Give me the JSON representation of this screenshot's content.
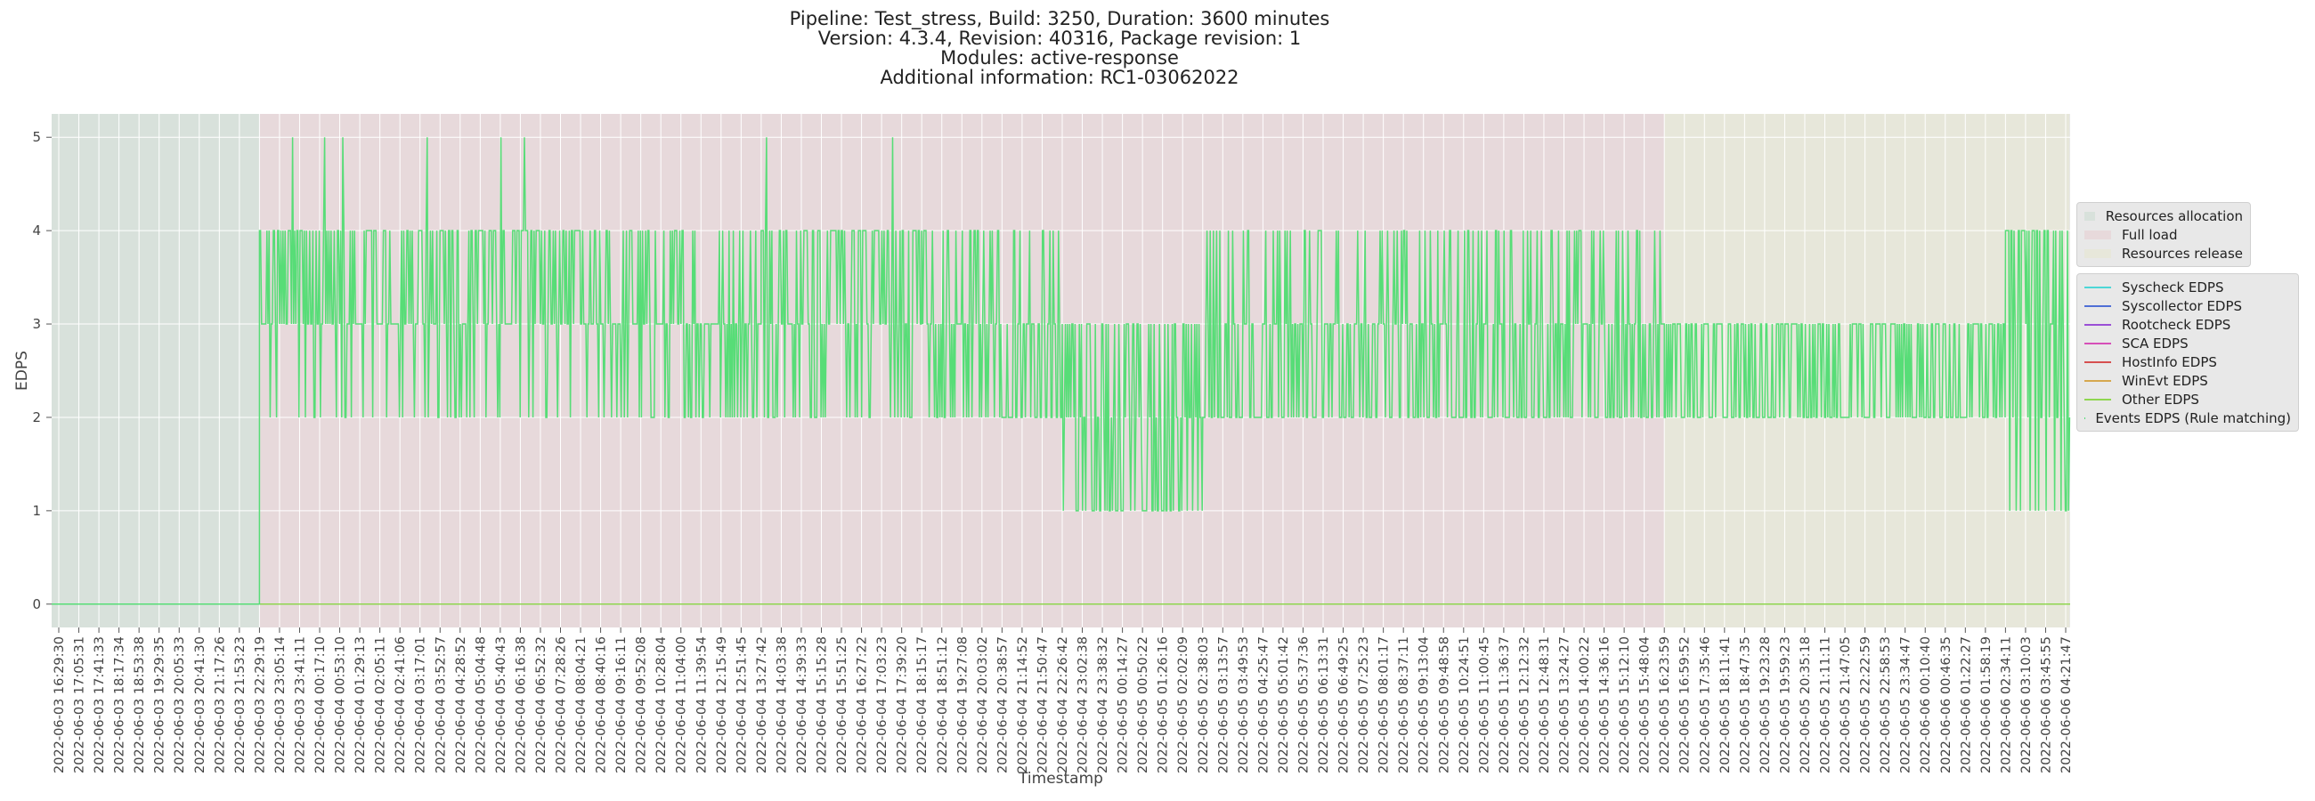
{
  "title_lines": [
    "Pipeline: Test_stress, Build: 3250, Duration: 3600 minutes",
    "Version: 4.3.4, Revision: 40316, Package revision: 1",
    "Modules: active-response",
    "Additional information: RC1-03062022"
  ],
  "colors": {
    "alloc": "#d8e1db",
    "full": "#e7d9db",
    "release": "#e7e7da",
    "events": "#57dd77",
    "grid": "#ffffff"
  },
  "chart_data": {
    "type": "line",
    "title": "Pipeline: Test_stress, Build: 3250, Duration: 3600 minutes",
    "xlabel": "Timestamp",
    "ylabel": "EDPS",
    "ylim": [
      -0.25,
      5.25
    ],
    "yticks": [
      0,
      1,
      2,
      3,
      4,
      5
    ],
    "grid": true,
    "legend_placement": "right",
    "phases": [
      {
        "name": "Resources allocation",
        "color": "#d8e1db",
        "from_tick": 0,
        "to_tick": 10
      },
      {
        "name": "Full load",
        "color": "#e7d9db",
        "from_tick": 10,
        "to_tick": 80
      },
      {
        "name": "Resources release",
        "color": "#e7e7da",
        "from_tick": 80,
        "to_tick": 100.2
      }
    ],
    "series": [
      {
        "name": "Syscheck EDPS",
        "color": "#4dd6d6",
        "constant": 0
      },
      {
        "name": "Syscollector EDPS",
        "color": "#4f6fd6",
        "constant": 0
      },
      {
        "name": "Rootcheck EDPS",
        "color": "#9a4fd6",
        "constant": 0
      },
      {
        "name": "SCA EDPS",
        "color": "#d64fb8",
        "constant": 0
      },
      {
        "name": "HostInfo EDPS",
        "color": "#d64f4f",
        "constant": 0
      },
      {
        "name": "WinEvt EDPS",
        "color": "#d6a84f",
        "constant": 0
      },
      {
        "name": "Other EDPS",
        "color": "#8fd64f",
        "constant": 0
      },
      {
        "name": "Events EDPS (Rule matching)",
        "color": "#57dd77",
        "segments": [
          {
            "from_tick": 0,
            "to_tick": 10,
            "values": [
              0
            ]
          },
          {
            "from_tick": 10,
            "to_tick": 26,
            "values": [
              2,
              3,
              4,
              4,
              3,
              4
            ],
            "spikes": 5
          },
          {
            "from_tick": 26,
            "to_tick": 35,
            "values": [
              2,
              3,
              3,
              4
            ]
          },
          {
            "from_tick": 35,
            "to_tick": 43,
            "values": [
              2,
              3,
              4,
              4,
              3
            ],
            "spikes": 5
          },
          {
            "from_tick": 43,
            "to_tick": 50,
            "values": [
              2,
              3,
              3,
              2,
              4
            ]
          },
          {
            "from_tick": 50,
            "to_tick": 57,
            "values": [
              1,
              2,
              3,
              2,
              3,
              1
            ]
          },
          {
            "from_tick": 57,
            "to_tick": 80,
            "values": [
              2,
              3,
              3,
              2,
              4
            ]
          },
          {
            "from_tick": 80,
            "to_tick": 97,
            "values": [
              2,
              3,
              3,
              2
            ]
          },
          {
            "from_tick": 97,
            "to_tick": 100.2,
            "values": [
              2,
              3,
              4,
              4,
              1
            ]
          }
        ]
      }
    ],
    "x_tick_labels": [
      "2022-06-03 16:29:30",
      "2022-06-03 17:05:31",
      "2022-06-03 17:41:33",
      "2022-06-03 18:17:34",
      "2022-06-03 18:53:38",
      "2022-06-03 19:29:35",
      "2022-06-03 20:05:33",
      "2022-06-03 20:41:30",
      "2022-06-03 21:17:26",
      "2022-06-03 21:53:23",
      "2022-06-03 22:29:19",
      "2022-06-03 23:05:14",
      "2022-06-03 23:41:11",
      "2022-06-04 00:17:10",
      "2022-06-04 00:53:10",
      "2022-06-04 01:29:13",
      "2022-06-04 02:05:11",
      "2022-06-04 02:41:06",
      "2022-06-04 03:17:01",
      "2022-06-04 03:52:57",
      "2022-06-04 04:28:52",
      "2022-06-04 05:04:48",
      "2022-06-04 05:40:43",
      "2022-06-04 06:16:38",
      "2022-06-04 06:52:32",
      "2022-06-04 07:28:26",
      "2022-06-04 08:04:21",
      "2022-06-04 08:40:16",
      "2022-06-04 09:16:11",
      "2022-06-04 09:52:08",
      "2022-06-04 10:28:04",
      "2022-06-04 11:04:00",
      "2022-06-04 11:39:54",
      "2022-06-04 12:15:49",
      "2022-06-04 12:51:45",
      "2022-06-04 13:27:42",
      "2022-06-04 14:03:38",
      "2022-06-04 14:39:33",
      "2022-06-04 15:15:28",
      "2022-06-04 15:51:25",
      "2022-06-04 16:27:22",
      "2022-06-04 17:03:23",
      "2022-06-04 17:39:20",
      "2022-06-04 18:15:17",
      "2022-06-04 18:51:12",
      "2022-06-04 19:27:08",
      "2022-06-04 20:03:02",
      "2022-06-04 20:38:57",
      "2022-06-04 21:14:52",
      "2022-06-04 21:50:47",
      "2022-06-04 22:26:42",
      "2022-06-04 23:02:38",
      "2022-06-04 23:38:32",
      "2022-06-05 00:14:27",
      "2022-06-05 00:50:22",
      "2022-06-05 01:26:16",
      "2022-06-05 02:02:09",
      "2022-06-05 02:38:03",
      "2022-06-05 03:13:57",
      "2022-06-05 03:49:53",
      "2022-06-05 04:25:47",
      "2022-06-05 05:01:42",
      "2022-06-05 05:37:36",
      "2022-06-05 06:13:31",
      "2022-06-05 06:49:25",
      "2022-06-05 07:25:23",
      "2022-06-05 08:01:17",
      "2022-06-05 08:37:11",
      "2022-06-05 09:13:04",
      "2022-06-05 09:48:58",
      "2022-06-05 10:24:51",
      "2022-06-05 11:00:45",
      "2022-06-05 11:36:37",
      "2022-06-05 12:12:32",
      "2022-06-05 12:48:31",
      "2022-06-05 13:24:27",
      "2022-06-05 14:00:22",
      "2022-06-05 14:36:16",
      "2022-06-05 15:12:10",
      "2022-06-05 15:48:04",
      "2022-06-05 16:23:59",
      "2022-06-05 16:59:52",
      "2022-06-05 17:35:46",
      "2022-06-05 18:11:41",
      "2022-06-05 18:47:35",
      "2022-06-05 19:23:28",
      "2022-06-05 19:59:23",
      "2022-06-05 20:35:18",
      "2022-06-05 21:11:11",
      "2022-06-05 21:47:05",
      "2022-06-05 22:22:59",
      "2022-06-05 22:58:53",
      "2022-06-05 23:34:47",
      "2022-06-06 00:10:40",
      "2022-06-06 00:46:35",
      "2022-06-06 01:22:27",
      "2022-06-06 01:58:19",
      "2022-06-06 02:34:11",
      "2022-06-06 03:10:03",
      "2022-06-06 03:45:55",
      "2022-06-06 04:21:47"
    ]
  }
}
